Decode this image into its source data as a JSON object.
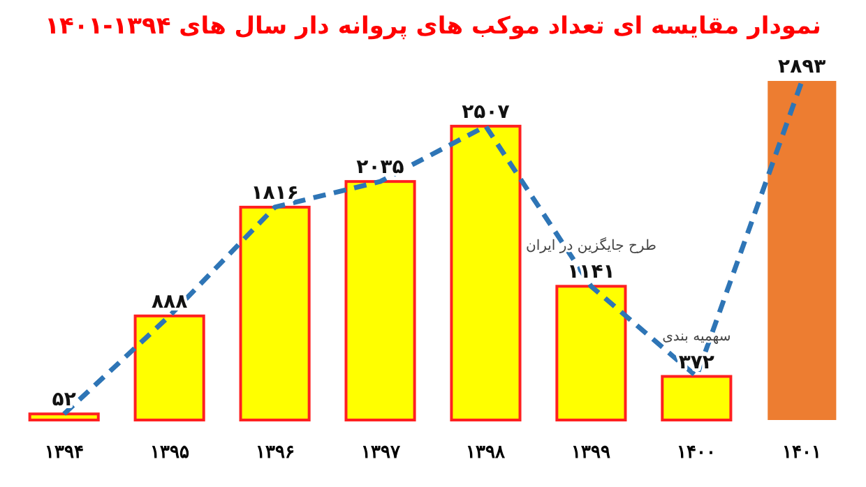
{
  "chart_data": {
    "type": "bar",
    "title": "نمودار مقایسه ای تعداد موکب های پروانه دار سال های ۱۳۹۴-۱۴۰۱",
    "categories": [
      "۱۳۹۴",
      "۱۳۹۵",
      "۱۳۹۶",
      "۱۳۹۷",
      "۱۳۹۸",
      "۱۳۹۹",
      "۱۴۰۰",
      "۱۴۰۱"
    ],
    "series": [
      {
        "values": [
          52,
          888,
          1816,
          2035,
          2507,
          1141,
          372,
          2893
        ],
        "colors": [
          "#ffff00",
          "#ffff00",
          "#ffff00",
          "#ffff00",
          "#ffff00",
          "#ffff00",
          "#ffff00",
          "#ed7d31"
        ],
        "value_labels": [
          "۵۲",
          "۸۸۸",
          "۱۸۱۶",
          "۲۰۳۵",
          "۲۵۰۷",
          "۱۱۴۱",
          "۳۷۲",
          "۲۸۹۳"
        ]
      },
      {
        "type": "line",
        "values": [
          52,
          888,
          1816,
          2035,
          2507,
          1141,
          372,
          2893
        ],
        "color": "#2e75b6",
        "line_style": "dashed",
        "marker": "none"
      }
    ],
    "annotations": [
      {
        "text": "طرح جایگزین در ایران",
        "x": "۱۳۹۹",
        "y": 1141
      },
      {
        "text": "سهمیه بندی",
        "x": "۱۴۰۰",
        "y": 372
      }
    ]
  }
}
